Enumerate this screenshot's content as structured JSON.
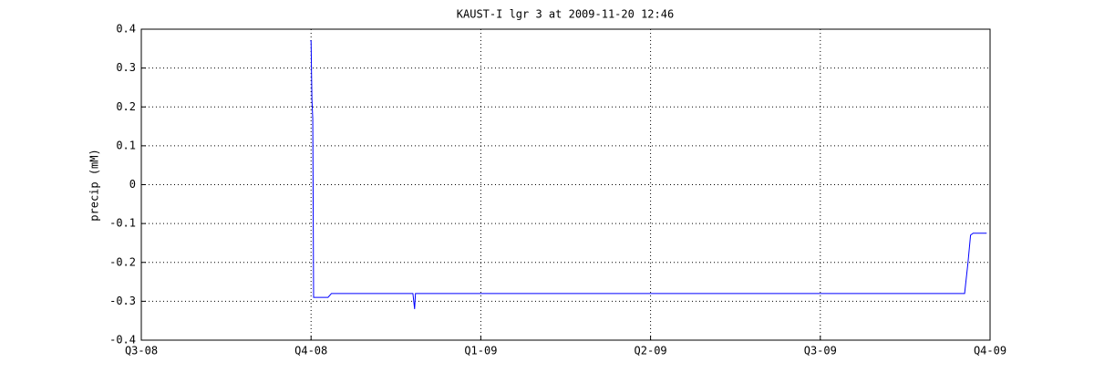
{
  "chart_data": {
    "type": "line",
    "title": "KAUST-I lgr 3 at 2009-11-20 12:46",
    "ylabel": "precip (mM)",
    "x": [
      0.995,
      1.0,
      1.005,
      1.01,
      1.015,
      1.1,
      1.12,
      1.6,
      1.61,
      1.615,
      2.6,
      3.5,
      4.3,
      4.6,
      4.85,
      4.87,
      4.885,
      4.9,
      4.98
    ],
    "values": [
      0.37,
      0.37,
      0.22,
      0.17,
      -0.29,
      -0.29,
      -0.28,
      -0.28,
      -0.32,
      -0.28,
      -0.28,
      -0.28,
      -0.28,
      -0.28,
      -0.28,
      -0.2,
      -0.13,
      -0.125,
      -0.125
    ],
    "color": "#0000ff",
    "xlim": [
      0,
      5
    ],
    "xticks": [
      {
        "value": 0,
        "label": "Q3-08"
      },
      {
        "value": 1,
        "label": "Q4-08"
      },
      {
        "value": 2,
        "label": "Q1-09"
      },
      {
        "value": 3,
        "label": "Q2-09"
      },
      {
        "value": 4,
        "label": "Q3-09"
      },
      {
        "value": 5,
        "label": "Q4-09"
      }
    ],
    "ylim": [
      -0.4,
      0.4
    ],
    "yticks": [
      -0.4,
      -0.3,
      -0.2,
      -0.1,
      0,
      0.1,
      0.2,
      0.3,
      0.4
    ],
    "grid": true
  }
}
